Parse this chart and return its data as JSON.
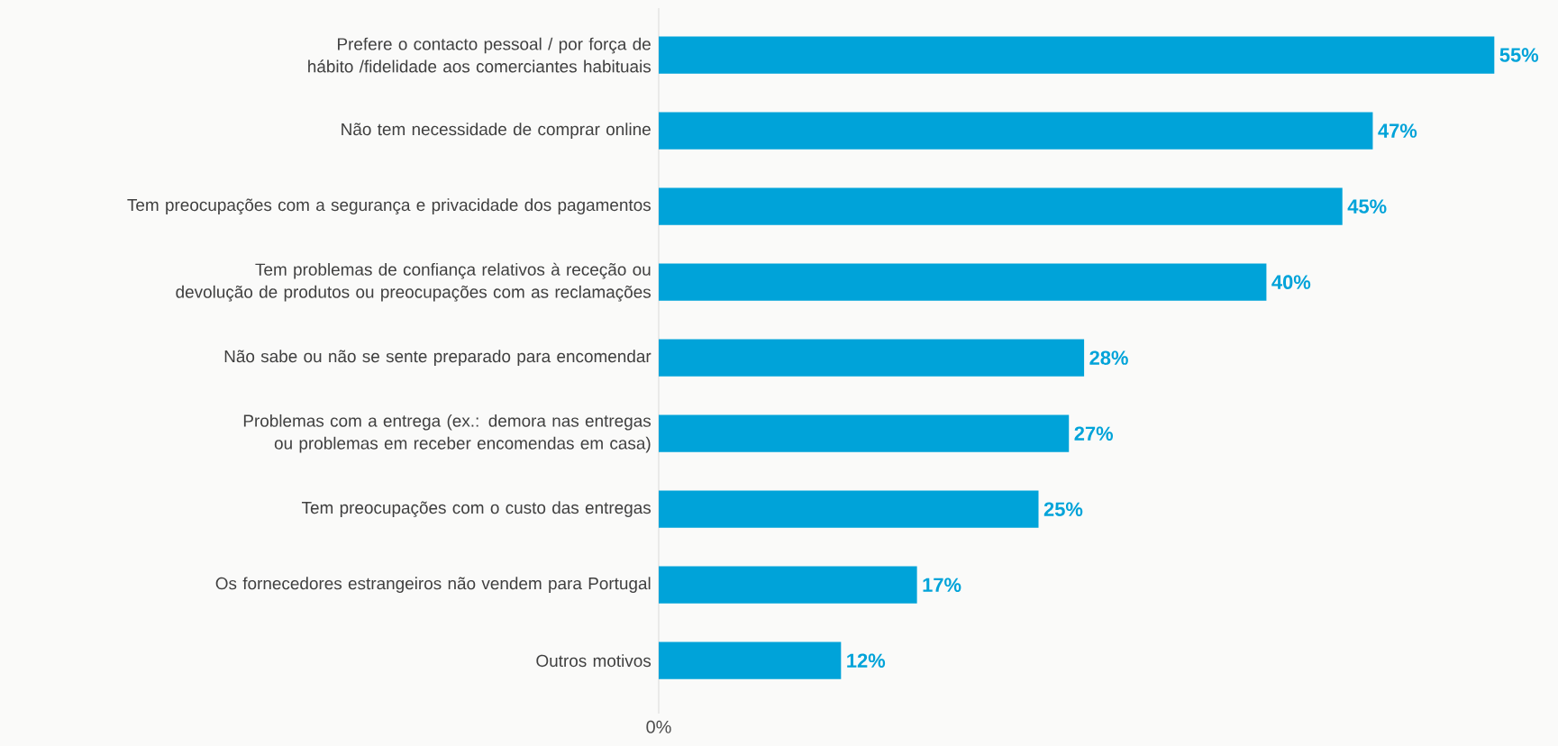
{
  "chart_data": {
    "type": "bar",
    "orientation": "horizontal",
    "color": "#00a3d9",
    "categories": [
      "Prefere o contacto pessoal / por força de hábito /fidelidade aos comerciantes habituais",
      "Não tem necessidade de comprar online",
      "Tem preocupações com a segurança e privacidade dos pagamentos",
      "Tem problemas de confiança relativos à receção ou devolução de produtos ou preocupações com as reclamações",
      "Não sabe ou não se sente preparado para encomendar",
      "Problemas com a entrega (ex.: demora nas entregas ou problemas em receber encomendas em casa)",
      "Tem preocupações com o custo das entregas",
      "Os fornecedores estrangeiros não vendem para Portugal",
      "Outros motivos"
    ],
    "values": [
      55,
      47,
      45,
      40,
      28,
      27,
      25,
      17,
      12
    ],
    "value_labels": [
      "55%",
      "47%",
      "45%",
      "40%",
      "28%",
      "27%",
      "25%",
      "17%",
      "12%"
    ],
    "annotations": [
      "0%"
    ]
  }
}
